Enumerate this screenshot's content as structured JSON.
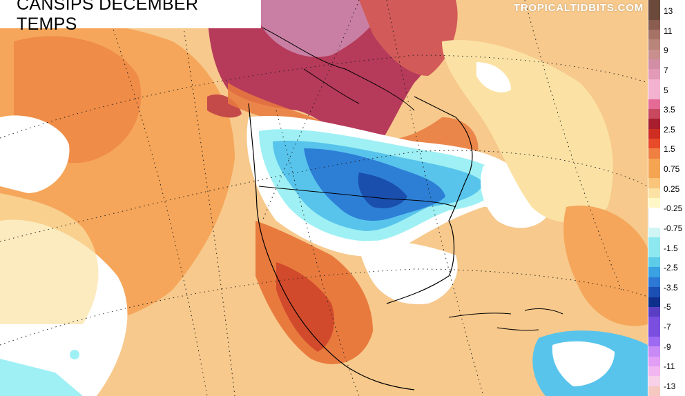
{
  "title": "CANSIPS DECEMBER TEMPS",
  "credit": "TROPICALTIDBITS.COM",
  "legend": {
    "labels": [
      "13",
      "11",
      "9",
      "7",
      "5",
      "3.5",
      "2.5",
      "1.5",
      "0.75",
      "0.25",
      "-0.25",
      "-0.75",
      "-1.5",
      "-2.5",
      "-3.5",
      "-5",
      "-7",
      "-9",
      "-11",
      "-13"
    ],
    "colors": [
      "#6b4a3c",
      "#8a5d50",
      "#a77266",
      "#b98479",
      "#c98f8e",
      "#d28ea4",
      "#e29ab7",
      "#f3b2cf",
      "#e46b96",
      "#c8485f",
      "#a71e2e",
      "#cf2c22",
      "#e84b2a",
      "#f08042",
      "#f5a452",
      "#f8c57a",
      "#fbe2a4",
      "#fff7c7",
      "#ffffff",
      "#ffffff",
      "#cff5f5",
      "#8ee8f0",
      "#5ccce9",
      "#3aa1e3",
      "#2c78d4",
      "#1c4fb3",
      "#0e2f8c",
      "#5a3fc4",
      "#7a4fe0",
      "#9e6af2",
      "#c88af5",
      "#e29ef5",
      "#f2b7f0",
      "#f8d0e8",
      "#f5c9c0"
    ]
  },
  "map_layers": {
    "background_color": "#f7c98c",
    "warm_light": "#f9d9a0",
    "warm_mid": "#f5a65a",
    "warm_strong": "#e97a3e",
    "hot": "#d24a2c",
    "arctic_hot": "#b63a5a",
    "arctic_extreme": "#c98fa8",
    "neutral": "#ffffff",
    "cool_light": "#9ff0f4",
    "cool_mid": "#58c4ec",
    "cool_strong": "#2d7fd6",
    "cool_core": "#1a4fae"
  }
}
